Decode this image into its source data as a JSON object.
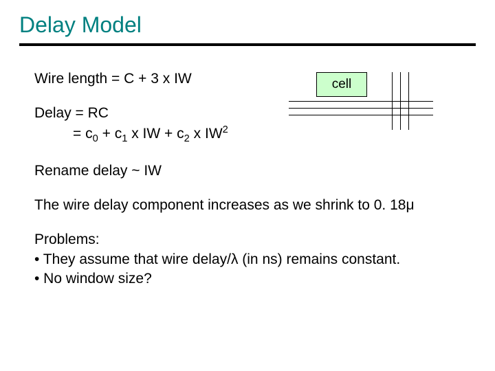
{
  "title": {
    "text": "Delay Model",
    "color": "#008080"
  },
  "wire_equation": "Wire length = C + 3 x IW",
  "cell_diagram": {
    "label": "cell",
    "fill": "#ccffcc",
    "hline_y": [
      42,
      52,
      62
    ],
    "vline_x": [
      150,
      162,
      174
    ]
  },
  "delay_line1": "Delay = RC",
  "delay_line2_parts": {
    "prefix": "= c",
    "s0": "0",
    "mid1": " + c",
    "s1": "1",
    "mid2": " x IW + c",
    "s2": "2",
    "mid3": " x IW",
    "exp": "2"
  },
  "rename": "Rename delay ~ IW",
  "wire_delay_text": {
    "pre": "The wire delay component increases as we shrink to 0. 18",
    "mu": "μ"
  },
  "problems": {
    "heading": "Problems:",
    "b1_pre": "• They assume that wire delay/",
    "b1_lambda": "λ",
    "b1_post": " (in ns) remains constant.",
    "b2": "• No window size?"
  }
}
